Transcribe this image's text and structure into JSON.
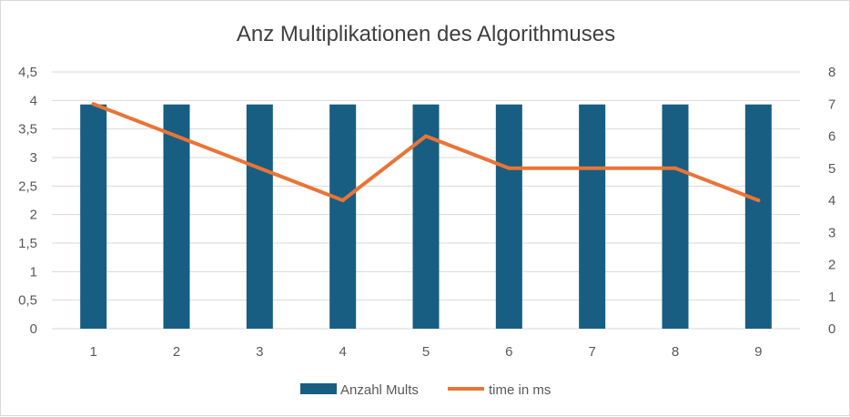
{
  "chart_data": {
    "type": "bar",
    "title": "Anz Multiplikationen des Algorithmuses",
    "categories": [
      "1",
      "2",
      "3",
      "4",
      "5",
      "6",
      "7",
      "8",
      "9"
    ],
    "series": [
      {
        "name": "Anzahl Mults",
        "type": "bar",
        "axis": "primary",
        "color": "#175e82",
        "values": [
          3.93,
          3.93,
          3.93,
          3.93,
          3.93,
          3.93,
          3.93,
          3.93,
          3.93
        ]
      },
      {
        "name": "time in ms",
        "type": "line",
        "axis": "secondary",
        "color": "#ea7436",
        "values": [
          7,
          6,
          5,
          4,
          6,
          5,
          5,
          5,
          4
        ]
      }
    ],
    "y_left": {
      "min": 0,
      "max": 4.5,
      "ticks": [
        "0",
        "0,5",
        "1",
        "1,5",
        "2",
        "2,5",
        "3",
        "3,5",
        "4",
        "4,5"
      ]
    },
    "y_right": {
      "min": 0,
      "max": 8,
      "ticks": [
        "0",
        "1",
        "2",
        "3",
        "4",
        "5",
        "6",
        "7",
        "8"
      ]
    },
    "grid": true,
    "legend": "bottom",
    "colors": {
      "gridline": "#d9d9d9",
      "text": "#595959",
      "title": "#404040"
    }
  }
}
